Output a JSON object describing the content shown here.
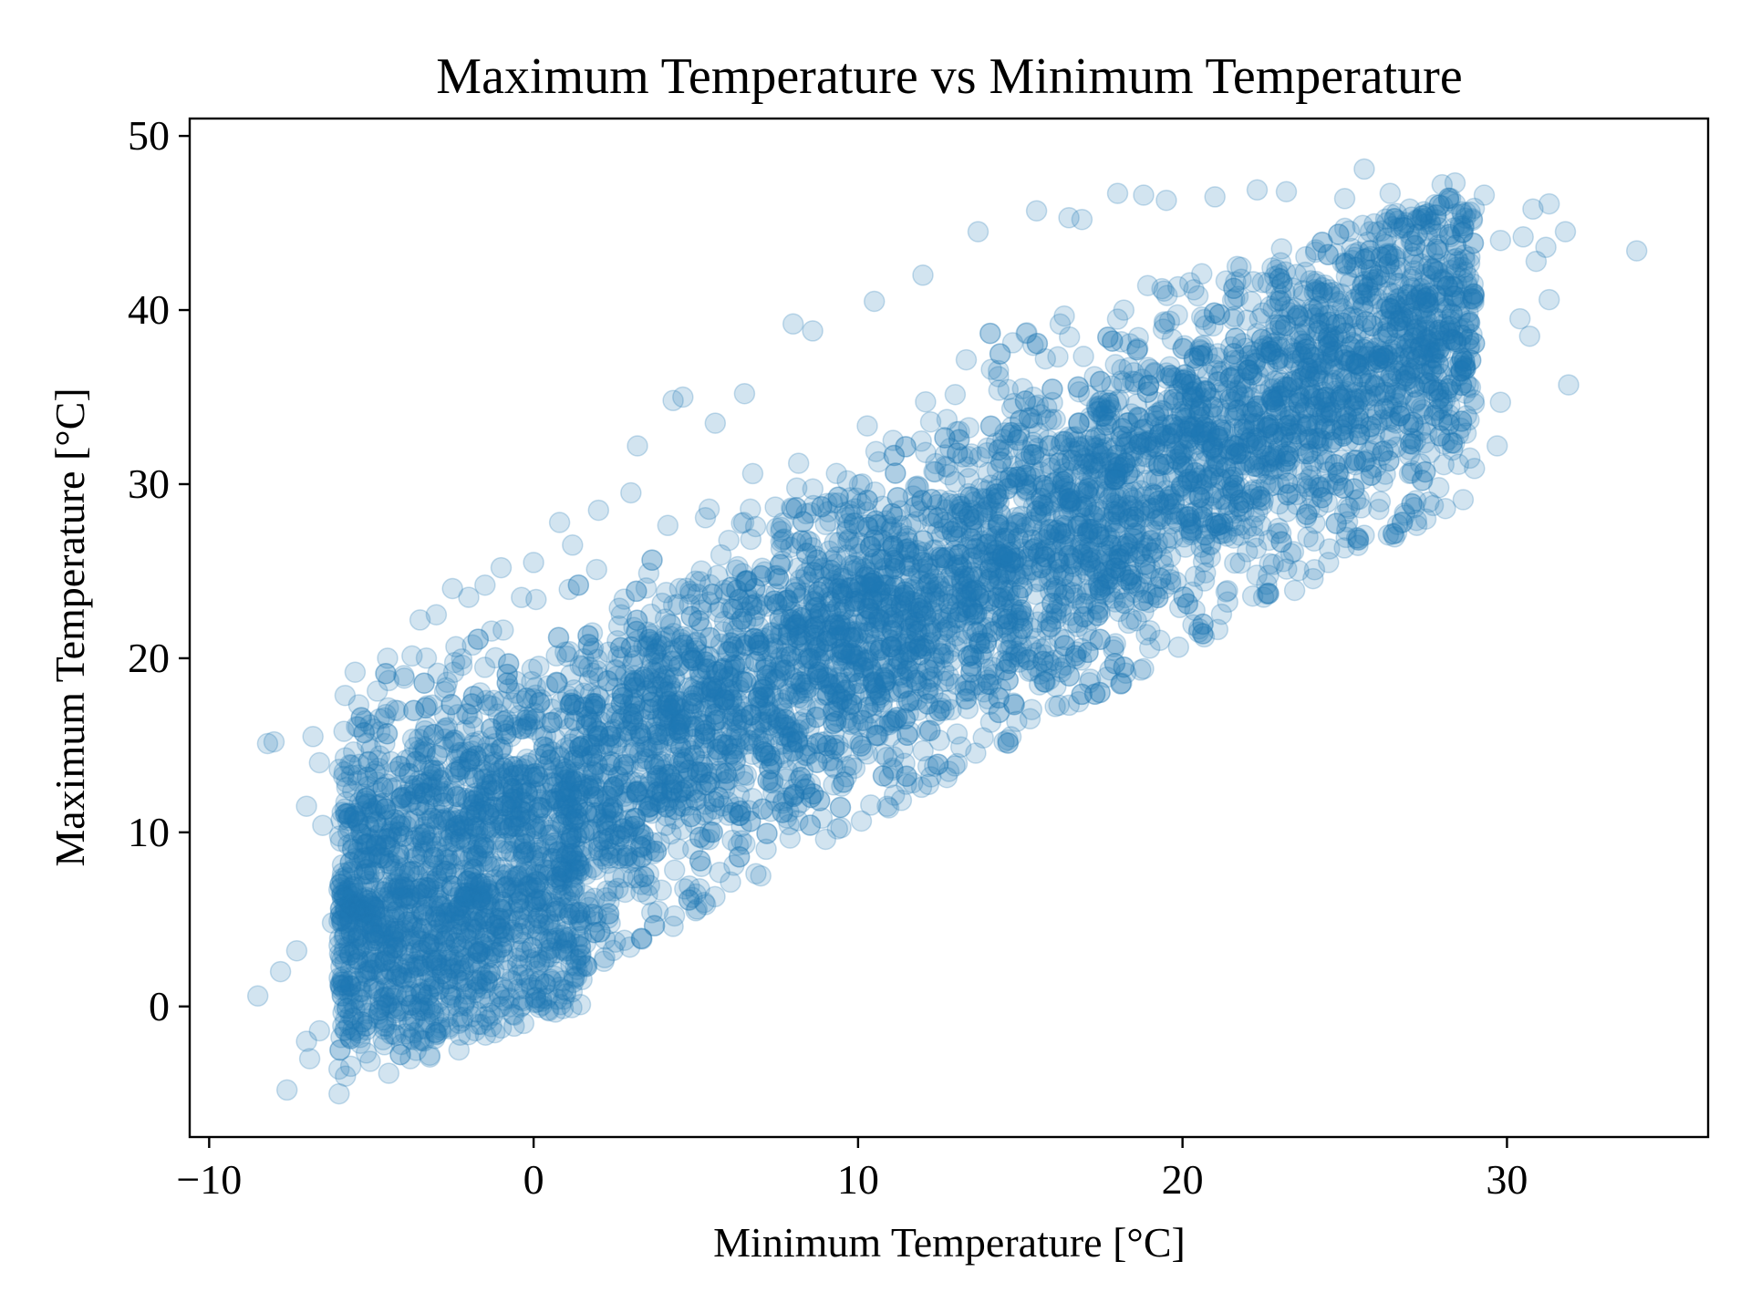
{
  "chart_data": {
    "type": "scatter",
    "title": "Maximum Temperature vs Minimum Temperature",
    "xlabel": "Minimum Temperature [°C]",
    "ylabel": "Maximum Temperature [°C]",
    "xlim": [
      -10.6,
      36.2
    ],
    "ylim": [
      -7.5,
      51
    ],
    "xticks": [
      -10,
      0,
      10,
      20,
      30
    ],
    "xtick_labels": [
      "−10",
      "0",
      "10",
      "20",
      "30"
    ],
    "yticks": [
      0,
      10,
      20,
      30,
      40,
      50
    ],
    "ytick_labels": [
      "0",
      "10",
      "20",
      "30",
      "40",
      "50"
    ],
    "grid": false,
    "marker": "circle",
    "marker_alpha": 0.2,
    "color": "#1f77b4",
    "approximate_relationship": {
      "description_of_bulk": "dense band",
      "slope": 1.0,
      "intercept": 11,
      "x_range": [
        -6,
        29
      ]
    },
    "series": [
      {
        "values": [
          [
            -8.5,
            0.6
          ],
          [
            -7.6,
            -4.8
          ],
          [
            -7.3,
            3.2
          ],
          [
            -6.9,
            -3.0
          ],
          [
            -7.8,
            2.0
          ],
          [
            -8.0,
            15.2
          ],
          [
            -8.2,
            15.1
          ],
          [
            -6.8,
            15.5
          ],
          [
            -6.6,
            14.0
          ],
          [
            -7.0,
            11.5
          ],
          [
            -6.5,
            10.4
          ],
          [
            -6.2,
            4.8
          ],
          [
            -6.0,
            -3.6
          ],
          [
            -5.8,
            -4.0
          ],
          [
            -5.5,
            19.2
          ],
          [
            -5.2,
            16.4
          ],
          [
            -3.5,
            22.2
          ],
          [
            -3.0,
            22.5
          ],
          [
            -2.5,
            24.0
          ],
          [
            -2.0,
            23.5
          ],
          [
            -1.5,
            24.2
          ],
          [
            -4.5,
            20.0
          ],
          [
            -4.0,
            19.0
          ],
          [
            -3.8,
            -3.0
          ],
          [
            -3.2,
            -2.8
          ],
          [
            -4.6,
            -2.2
          ],
          [
            -5.0,
            2.5
          ],
          [
            -5.5,
            8.5
          ],
          [
            -1.0,
            25.2
          ],
          [
            0.0,
            25.5
          ],
          [
            0.8,
            27.8
          ],
          [
            1.2,
            26.5
          ],
          [
            2.0,
            28.5
          ],
          [
            3.0,
            29.5
          ],
          [
            3.2,
            32.2
          ],
          [
            4.3,
            34.8
          ],
          [
            4.6,
            35.0
          ],
          [
            5.6,
            33.5
          ],
          [
            6.5,
            35.2
          ],
          [
            8.0,
            39.2
          ],
          [
            8.6,
            38.8
          ],
          [
            10.5,
            40.5
          ],
          [
            12.0,
            42.0
          ],
          [
            13.7,
            44.5
          ],
          [
            15.5,
            45.7
          ],
          [
            16.5,
            45.3
          ],
          [
            16.9,
            45.2
          ],
          [
            18.0,
            46.7
          ],
          [
            18.8,
            46.6
          ],
          [
            19.5,
            46.3
          ],
          [
            21.0,
            46.5
          ],
          [
            22.3,
            46.9
          ],
          [
            23.2,
            46.8
          ],
          [
            25.0,
            46.4
          ],
          [
            25.6,
            48.1
          ],
          [
            26.4,
            46.7
          ],
          [
            28.0,
            47.2
          ],
          [
            28.4,
            47.3
          ],
          [
            29.3,
            46.6
          ],
          [
            30.8,
            45.8
          ],
          [
            31.3,
            46.1
          ],
          [
            31.8,
            44.5
          ],
          [
            30.5,
            44.2
          ],
          [
            29.8,
            44.0
          ],
          [
            31.2,
            43.6
          ],
          [
            30.9,
            42.8
          ],
          [
            34.0,
            43.4
          ],
          [
            31.3,
            40.6
          ],
          [
            30.4,
            39.5
          ],
          [
            30.7,
            38.5
          ],
          [
            31.9,
            35.7
          ],
          [
            29.8,
            34.7
          ],
          [
            29.7,
            32.2
          ],
          [
            29.0,
            30.9
          ],
          [
            27.9,
            29.8
          ],
          [
            27.5,
            28.0
          ],
          [
            26.6,
            27.2
          ],
          [
            24.5,
            25.5
          ],
          [
            22.6,
            23.7
          ],
          [
            20.5,
            21.5
          ],
          [
            18.8,
            19.4
          ],
          [
            16.8,
            17.5
          ],
          [
            14.5,
            15.2
          ],
          [
            12.8,
            13.5
          ],
          [
            10.9,
            11.5
          ],
          [
            9.0,
            9.6
          ],
          [
            7.0,
            7.5
          ],
          [
            5.0,
            5.5
          ],
          [
            4.3,
            4.6
          ],
          [
            2.8,
            3.8
          ],
          [
            1.5,
            2.3
          ],
          [
            0.8,
            1.1
          ],
          [
            -0.6,
            -0.5
          ],
          [
            -1.8,
            -1.4
          ],
          [
            -3.2,
            -2.9
          ],
          [
            -2.3,
            -2.5
          ],
          [
            -4.3,
            -1.6
          ],
          [
            -6.6,
            -1.4
          ],
          [
            -7.0,
            -2.0
          ]
        ]
      }
    ]
  }
}
